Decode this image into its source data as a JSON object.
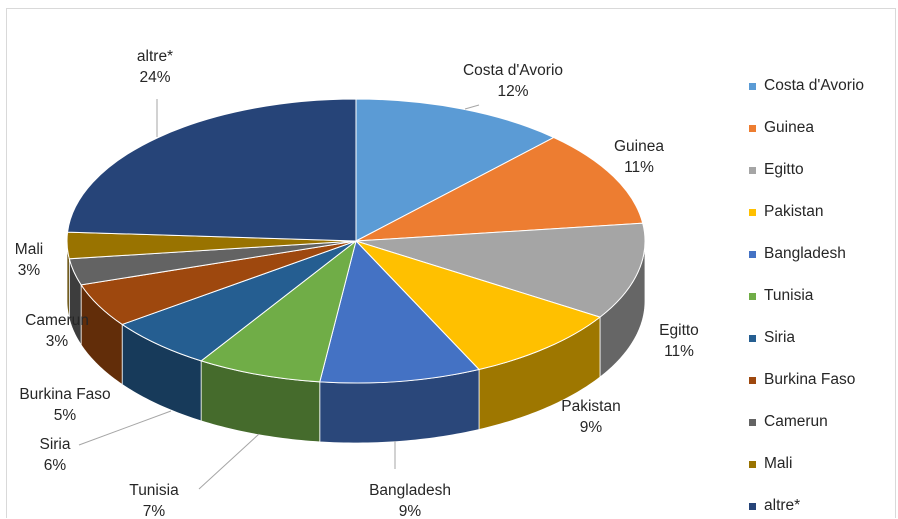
{
  "chart_data": {
    "type": "pie",
    "style": "3d",
    "legend_position": "right",
    "slices": [
      {
        "name": "Costa d'Avorio",
        "value": 12,
        "label": "12%",
        "color": "#5B9BD5"
      },
      {
        "name": "Guinea",
        "value": 11,
        "label": "11%",
        "color": "#ED7D31"
      },
      {
        "name": "Egitto",
        "value": 11,
        "label": "11%",
        "color": "#A5A5A5"
      },
      {
        "name": "Pakistan",
        "value": 9,
        "label": "9%",
        "color": "#FFC000"
      },
      {
        "name": "Bangladesh",
        "value": 9,
        "label": "9%",
        "color": "#4472C4"
      },
      {
        "name": "Tunisia",
        "value": 7,
        "label": "7%",
        "color": "#70AD47"
      },
      {
        "name": "Siria",
        "value": 6,
        "label": "6%",
        "color": "#255E91"
      },
      {
        "name": "Burkina Faso",
        "value": 5,
        "label": "5%",
        "color": "#9E480E"
      },
      {
        "name": "Camerun",
        "value": 3,
        "label": "3%",
        "color": "#636363"
      },
      {
        "name": "Mali",
        "value": 3,
        "label": "3%",
        "color": "#997300"
      },
      {
        "name": "altre*",
        "value": 24,
        "label": "24%",
        "color": "#264478"
      }
    ]
  }
}
